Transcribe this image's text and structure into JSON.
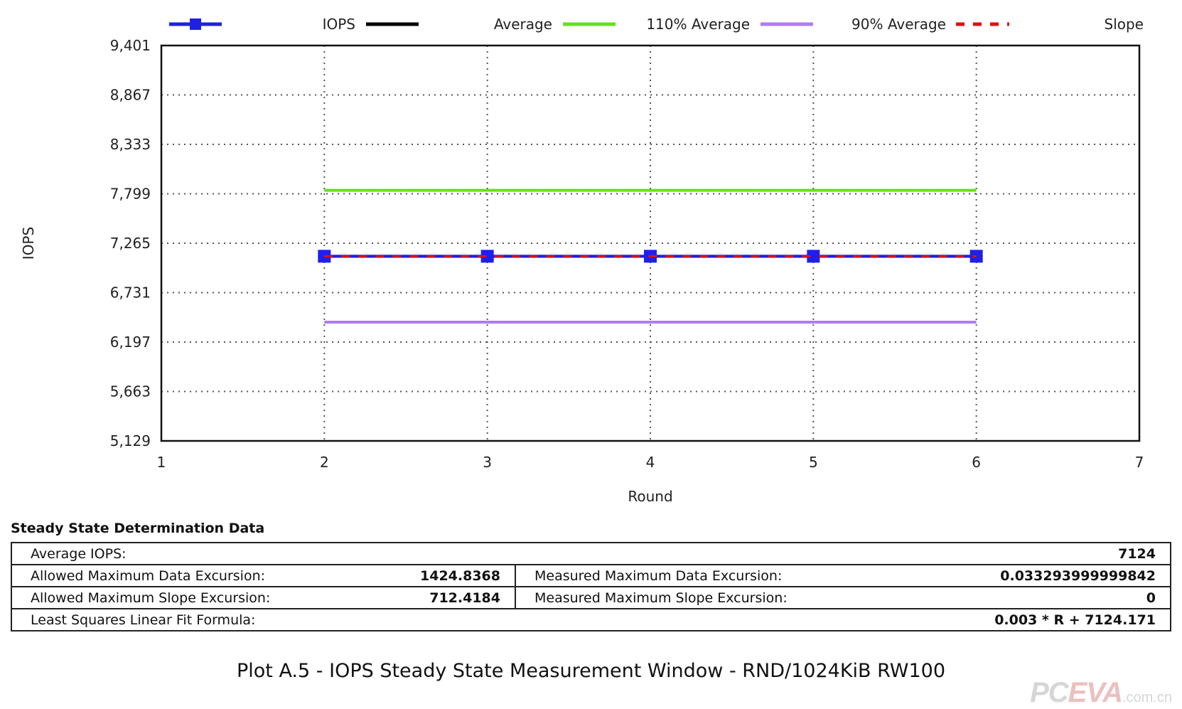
{
  "chart_data": {
    "type": "line",
    "xlabel": "Round",
    "ylabel": "IOPS",
    "xlim": [
      1,
      7
    ],
    "ylim": [
      5129,
      9401
    ],
    "x_ticks": [
      "1",
      "2",
      "3",
      "4",
      "5",
      "6",
      "7"
    ],
    "y_ticks": [
      "9,401",
      "8,867",
      "8,333",
      "7,799",
      "7,265",
      "6,731",
      "6,197",
      "5,663",
      "5,129"
    ],
    "grid": true,
    "legend_position": "top",
    "x": [
      2,
      3,
      4,
      5,
      6
    ],
    "series": [
      {
        "name": "IOPS",
        "values": [
          7124,
          7124,
          7124,
          7124,
          7124
        ],
        "color": "#1f1fe8",
        "style": "line-square"
      },
      {
        "name": "Average",
        "values": [
          7124,
          7124,
          7124,
          7124,
          7124
        ],
        "color": "#000000",
        "style": "line"
      },
      {
        "name": "110% Average",
        "values": [
          7836,
          7836,
          7836,
          7836,
          7836
        ],
        "color": "#66e01a",
        "style": "line"
      },
      {
        "name": "90% Average",
        "values": [
          6412,
          6412,
          6412,
          6412,
          6412
        ],
        "color": "#b07cf0",
        "style": "line"
      },
      {
        "name": "Slope",
        "values": [
          7124,
          7124,
          7124,
          7124,
          7124
        ],
        "color": "#e01010",
        "style": "dashed"
      }
    ]
  },
  "steady_state": {
    "title": "Steady State Determination Data",
    "average_iops_label": "Average IOPS:",
    "average_iops_value": "7124",
    "allowed_data_label": "Allowed Maximum Data Excursion:",
    "allowed_data_value": "1424.8368",
    "measured_data_label": "Measured Maximum Data Excursion:",
    "measured_data_value": "0.033293999999842",
    "allowed_slope_label": "Allowed Maximum Slope Excursion:",
    "allowed_slope_value": "712.4184",
    "measured_slope_label": "Measured Maximum Slope Excursion:",
    "measured_slope_value": "0",
    "formula_label": "Least Squares Linear Fit Formula:",
    "formula_value": "0.003 * R + 7124.171"
  },
  "caption": "Plot A.5 - IOPS Steady State Measurement Window - RND/1024KiB RW100",
  "watermark": {
    "main": "PC",
    "em": "EVA",
    "suffix": ".com.cn"
  }
}
